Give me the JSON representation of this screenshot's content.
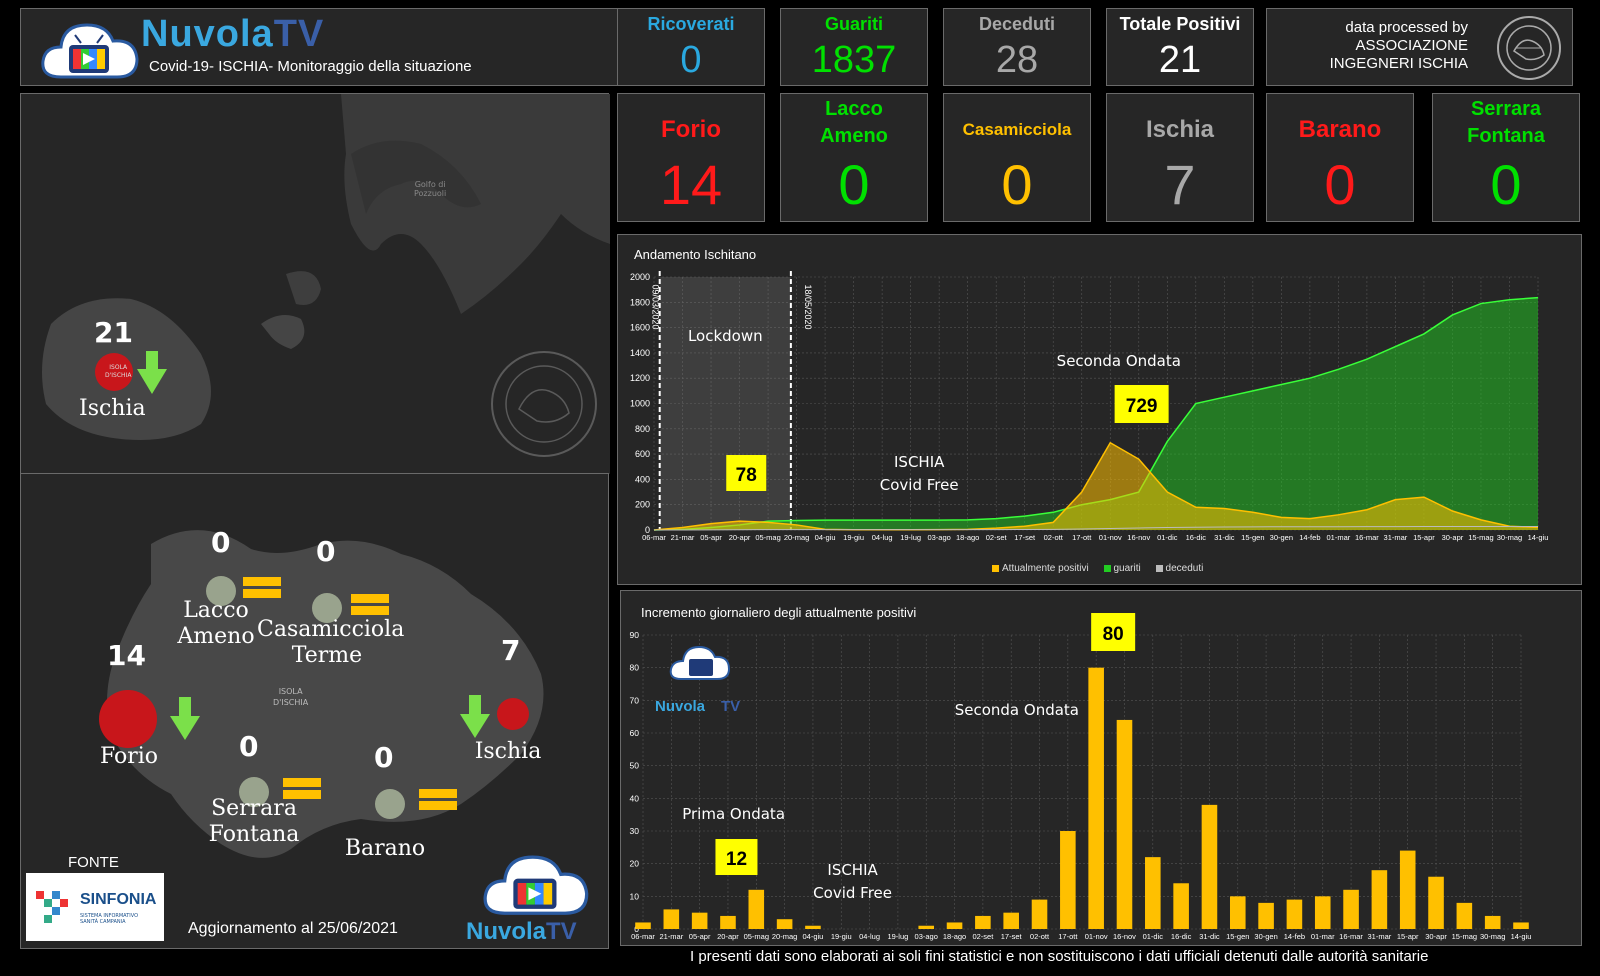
{
  "header": {
    "brand_a": "Nuvola",
    "brand_b": "TV",
    "subtitle": "Covid-19- ISCHIA- Monitoraggio della situazione"
  },
  "totals": [
    {
      "label": "Ricoverati",
      "value": "0",
      "label_color": "#2aa9e0",
      "value_color": "#2aa9e0"
    },
    {
      "label": "Guariti",
      "value": "1837",
      "label_color": "#00e000",
      "value_color": "#00e000"
    },
    {
      "label": "Deceduti",
      "value": "28",
      "label_color": "#a8a8a8",
      "value_color": "#a8a8a8"
    },
    {
      "label": "Totale Positivi",
      "value": "21",
      "label_color": "#ffffff",
      "value_color": "#ffffff"
    }
  ],
  "credit": {
    "line1": "data processed by",
    "line2": "ASSOCIAZIONE",
    "line3": "INGEGNERI ISCHIA"
  },
  "towns": [
    {
      "label_a": "Forio",
      "label_b": "",
      "value": "14",
      "color": "#ff1a1a"
    },
    {
      "label_a": "Lacco",
      "label_b": "Ameno",
      "value": "0",
      "color": "#00e000"
    },
    {
      "label_a": "Casamicciola",
      "label_b": "",
      "value": "0",
      "color": "#ffc000"
    },
    {
      "label_a": "Ischia",
      "label_b": "",
      "value": "7",
      "color": "#a8a8a8"
    },
    {
      "label_a": "Barano",
      "label_b": "",
      "value": "0",
      "color": "#ff1a1a"
    },
    {
      "label_a": "Serrara",
      "label_b": "Fontana",
      "value": "0",
      "color": "#00e000"
    }
  ],
  "map_top": {
    "count": "21",
    "label": "Ischia",
    "place1": "Golfo di",
    "place2": "Pozzuoli",
    "island_tag1": "ISOLA",
    "island_tag2": "D'ISCHIA"
  },
  "map_bottom": {
    "island1": "ISOLA",
    "island2": "D'ISCHIA",
    "towns": [
      {
        "num": "0",
        "name_a": "Lacco",
        "name_b": "Ameno",
        "trend": "equal"
      },
      {
        "num": "0",
        "name_a": "Casamicciola",
        "name_b": "Terme",
        "trend": "equal"
      },
      {
        "num": "14",
        "name_a": "Forio",
        "name_b": "",
        "trend": "down"
      },
      {
        "num": "7",
        "name_a": "Ischia",
        "name_b": "",
        "trend": "down"
      },
      {
        "num": "0",
        "name_a": "Serrara",
        "name_b": "Fontana",
        "trend": "equal"
      },
      {
        "num": "0",
        "name_a": "Barano",
        "name_b": "",
        "trend": "equal"
      }
    ],
    "fonte": "FONTE",
    "sinfonia": "SINFONIA",
    "sinfonia_sub1": "SISTEMA INFORMATIVO",
    "sinfonia_sub2": "SANITÀ CAMPANIA",
    "update": "Aggiornamento al 25/06/2021"
  },
  "footer": "I presenti dati sono elaborati ai soli fini statistici e non sostituiscono i dati ufficiali detenuti dalle autorità sanitarie",
  "chart_data": [
    {
      "type": "area",
      "title": "Andamento Ischitano",
      "ylim": [
        0,
        2000
      ],
      "yticks": [
        0,
        200,
        400,
        600,
        800,
        1000,
        1200,
        1400,
        1600,
        1800,
        2000
      ],
      "grid": true,
      "legend_position": "bottom",
      "categories": [
        "06-mar",
        "21-mar",
        "05-apr",
        "20-apr",
        "05-mag",
        "20-mag",
        "04-giu",
        "19-giu",
        "04-lug",
        "19-lug",
        "03-ago",
        "18-ago",
        "02-set",
        "17-set",
        "02-ott",
        "17-ott",
        "01-nov",
        "16-nov",
        "01-dic",
        "16-dic",
        "31-dic",
        "15-gen",
        "30-gen",
        "14-feb",
        "01-mar",
        "16-mar",
        "31-mar",
        "15-apr",
        "30-apr",
        "15-mag",
        "30-mag",
        "14-giu"
      ],
      "series": [
        {
          "name": "Attualmente positivi",
          "color": "#ffc000",
          "values": [
            0,
            20,
            50,
            70,
            60,
            40,
            5,
            2,
            2,
            2,
            3,
            5,
            15,
            30,
            60,
            300,
            690,
            560,
            300,
            180,
            170,
            140,
            100,
            90,
            120,
            160,
            240,
            260,
            150,
            80,
            30,
            21
          ]
        },
        {
          "name": "guariti",
          "color": "#22cc22",
          "values": [
            0,
            5,
            20,
            40,
            70,
            75,
            78,
            78,
            78,
            78,
            78,
            80,
            90,
            110,
            140,
            200,
            240,
            300,
            700,
            1000,
            1050,
            1100,
            1150,
            1200,
            1270,
            1350,
            1450,
            1550,
            1700,
            1790,
            1820,
            1837
          ]
        },
        {
          "name": "deceduti",
          "color": "#bbbbbb",
          "values": [
            0,
            0,
            1,
            2,
            3,
            3,
            3,
            3,
            3,
            3,
            3,
            3,
            3,
            4,
            5,
            8,
            12,
            16,
            20,
            22,
            24,
            25,
            26,
            26,
            26,
            27,
            27,
            28,
            28,
            28,
            28,
            28
          ]
        }
      ],
      "annotations": {
        "lockdown": "Lockdown",
        "date_start": "09/03/2020",
        "date_end": "18/05/2020",
        "covid_free_a": "ISCHIA",
        "covid_free_b": "Covid Free",
        "wave2": "Seconda Ondata",
        "peak1": "78",
        "peak2": "729"
      }
    },
    {
      "type": "bar",
      "title": "Incremento giornaliero degli attualmente positivi",
      "ylim": [
        0,
        90
      ],
      "yticks": [
        0,
        10,
        20,
        30,
        40,
        50,
        60,
        70,
        80,
        90
      ],
      "grid": true,
      "categories": [
        "06-mar",
        "21-mar",
        "05-apr",
        "20-apr",
        "05-mag",
        "20-mag",
        "04-giu",
        "19-giu",
        "04-lug",
        "19-lug",
        "03-ago",
        "18-ago",
        "02-set",
        "17-set",
        "02-ott",
        "17-ott",
        "01-nov",
        "16-nov",
        "01-dic",
        "16-dic",
        "31-dic",
        "15-gen",
        "30-gen",
        "14-feb",
        "01-mar",
        "16-mar",
        "31-mar",
        "15-apr",
        "30-apr",
        "15-mag",
        "30-mag",
        "14-giu"
      ],
      "series": [
        {
          "name": "Incremento giornaliero",
          "color": "#ffc000",
          "values": [
            2,
            6,
            5,
            4,
            12,
            3,
            1,
            0,
            0,
            0,
            1,
            2,
            4,
            5,
            9,
            30,
            80,
            64,
            22,
            14,
            38,
            10,
            8,
            9,
            10,
            12,
            18,
            24,
            16,
            8,
            4,
            2
          ]
        }
      ],
      "annotations": {
        "wave1": "Prima Ondata",
        "wave2": "Seconda Ondata",
        "covid_free_a": "ISCHIA",
        "covid_free_b": "Covid Free",
        "peak1": "12",
        "peak2": "80",
        "logo_a": "Nuvola",
        "logo_b": "TV"
      }
    }
  ]
}
